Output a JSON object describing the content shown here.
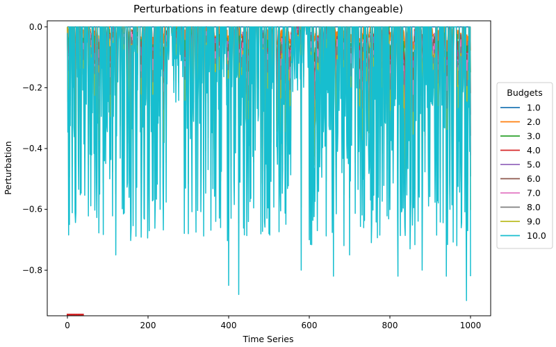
{
  "chart_data": {
    "type": "line",
    "title": "Perturbations in feature dewp (directly changeable)",
    "xlabel": "Time Series",
    "ylabel": "Perturbation",
    "xlim": [
      -50,
      1050
    ],
    "ylim": [
      -0.95,
      0.02
    ],
    "xticks": [
      0,
      200,
      400,
      600,
      800,
      1000
    ],
    "xtick_labels": [
      "0",
      "200",
      "400",
      "600",
      "800",
      "1000"
    ],
    "yticks": [
      0.0,
      -0.2,
      -0.4,
      -0.6,
      -0.8
    ],
    "ytick_labels": [
      "0.0",
      "−0.2",
      "−0.4",
      "−0.6",
      "−0.8"
    ],
    "grid": false,
    "legend": {
      "title": "Budgets",
      "placement": "right-outside"
    },
    "series": [
      {
        "name": "1.0",
        "color": "#1f77b4",
        "amplitude": 0.0
      },
      {
        "name": "2.0",
        "color": "#ff7f0e",
        "amplitude": 0.1
      },
      {
        "name": "3.0",
        "color": "#2ca02c",
        "amplitude": 0.2
      },
      {
        "name": "4.0",
        "color": "#d62728",
        "amplitude": 0.28
      },
      {
        "name": "5.0",
        "color": "#9467bd",
        "amplitude": 0.35
      },
      {
        "name": "6.0",
        "color": "#8c564b",
        "amplitude": 0.42
      },
      {
        "name": "7.0",
        "color": "#e377c2",
        "amplitude": 0.5
      },
      {
        "name": "8.0",
        "color": "#7f7f7f",
        "amplitude": 0.6
      },
      {
        "name": "9.0",
        "color": "#bcbd22",
        "amplitude": 0.75
      },
      {
        "name": "10.0",
        "color": "#17becf",
        "amplitude": 1.0
      }
    ],
    "x_range": [
      0,
      1000
    ],
    "n_points": 1001,
    "sample_points": [
      {
        "x": 0,
        "y": -0.02
      },
      {
        "x": 5,
        "y": -0.65
      },
      {
        "x": 40,
        "y": -0.15
      },
      {
        "x": 80,
        "y": -0.55
      },
      {
        "x": 120,
        "y": -0.75
      },
      {
        "x": 200,
        "y": -0.55
      },
      {
        "x": 230,
        "y": -0.6
      },
      {
        "x": 300,
        "y": -0.68
      },
      {
        "x": 380,
        "y": -0.66
      },
      {
        "x": 400,
        "y": -0.85
      },
      {
        "x": 425,
        "y": -0.88
      },
      {
        "x": 500,
        "y": -0.68
      },
      {
        "x": 580,
        "y": -0.8
      },
      {
        "x": 600,
        "y": -0.7
      },
      {
        "x": 660,
        "y": -0.82
      },
      {
        "x": 700,
        "y": -0.75
      },
      {
        "x": 820,
        "y": -0.82
      },
      {
        "x": 850,
        "y": -0.73
      },
      {
        "x": 880,
        "y": -0.8
      },
      {
        "x": 940,
        "y": -0.82
      },
      {
        "x": 990,
        "y": -0.9
      },
      {
        "x": 1000,
        "y": -0.82
      }
    ]
  }
}
